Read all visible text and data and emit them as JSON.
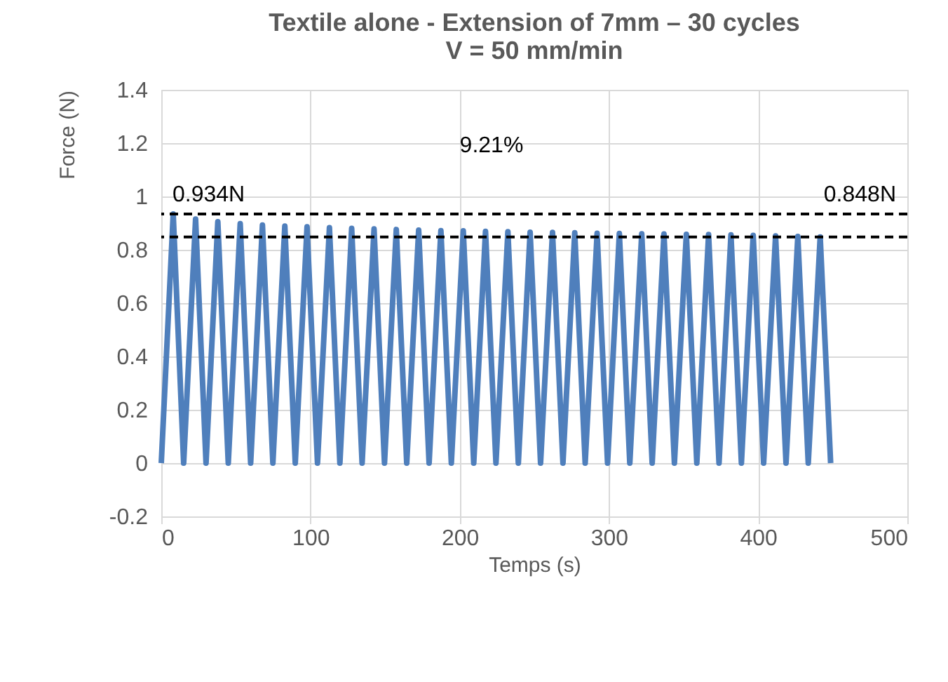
{
  "chart_data": {
    "type": "line",
    "title": [
      "Textile alone - Extension of 7mm – 30 cycles",
      "V = 50 mm/min"
    ],
    "xlabel": "Temps (s)",
    "ylabel": "Force (N)",
    "xlim": [
      0,
      500
    ],
    "xticks": [
      0,
      100,
      200,
      300,
      400,
      500
    ],
    "ylim": [
      -0.2,
      1.4
    ],
    "yticks": [
      -0.2,
      0,
      0.2,
      0.4,
      0.6,
      0.8,
      1,
      1.2,
      1.4
    ],
    "grid": true,
    "marker": "none",
    "line_style": "solid",
    "series": [
      {
        "color": "#4f7fbc",
        "x": [
          0,
          8,
          15,
          23,
          30,
          37.9,
          44.9,
          52.9,
          59.9,
          67.8,
          74.8,
          82.8,
          89.8,
          97.7,
          104.7,
          112.7,
          119.7,
          127.6,
          134.6,
          142.6,
          149.6,
          157.5,
          164.5,
          172.5,
          179.5,
          187.4,
          194.4,
          202.4,
          209.4,
          217.3,
          224.3,
          232.3,
          239.3,
          247.2,
          254.2,
          262.2,
          269.2,
          277.1,
          284.1,
          292.1,
          299.1,
          307,
          314,
          322,
          329,
          336.9,
          343.9,
          351.9,
          358.9,
          366.8,
          373.8,
          381.8,
          388.8,
          396.7,
          403.7,
          411.7,
          418.7,
          426.6,
          433.6,
          441.6,
          448.6
        ],
        "values": [
          0,
          0.934,
          0,
          0.915,
          0,
          0.905,
          0,
          0.898,
          0,
          0.893,
          0,
          0.889,
          0,
          0.886,
          0,
          0.883,
          0,
          0.88,
          0,
          0.878,
          0,
          0.876,
          0,
          0.874,
          0,
          0.872,
          0,
          0.871,
          0,
          0.869,
          0,
          0.868,
          0,
          0.866,
          0,
          0.865,
          0,
          0.864,
          0,
          0.862,
          0,
          0.861,
          0,
          0.86,
          0,
          0.859,
          0,
          0.858,
          0,
          0.857,
          0,
          0.856,
          0,
          0.854,
          0,
          0.852,
          0,
          0.85,
          0,
          0.848,
          0
        ]
      }
    ],
    "ref_lines": [
      {
        "axis": "y",
        "value": 0.934,
        "label": "0.934N",
        "color": "#000000",
        "line_style": "dashed"
      },
      {
        "axis": "y",
        "value": 0.848,
        "label": "0.848N",
        "color": "#000000",
        "line_style": "dashed"
      }
    ],
    "annotations": [
      "9.21%"
    ]
  }
}
